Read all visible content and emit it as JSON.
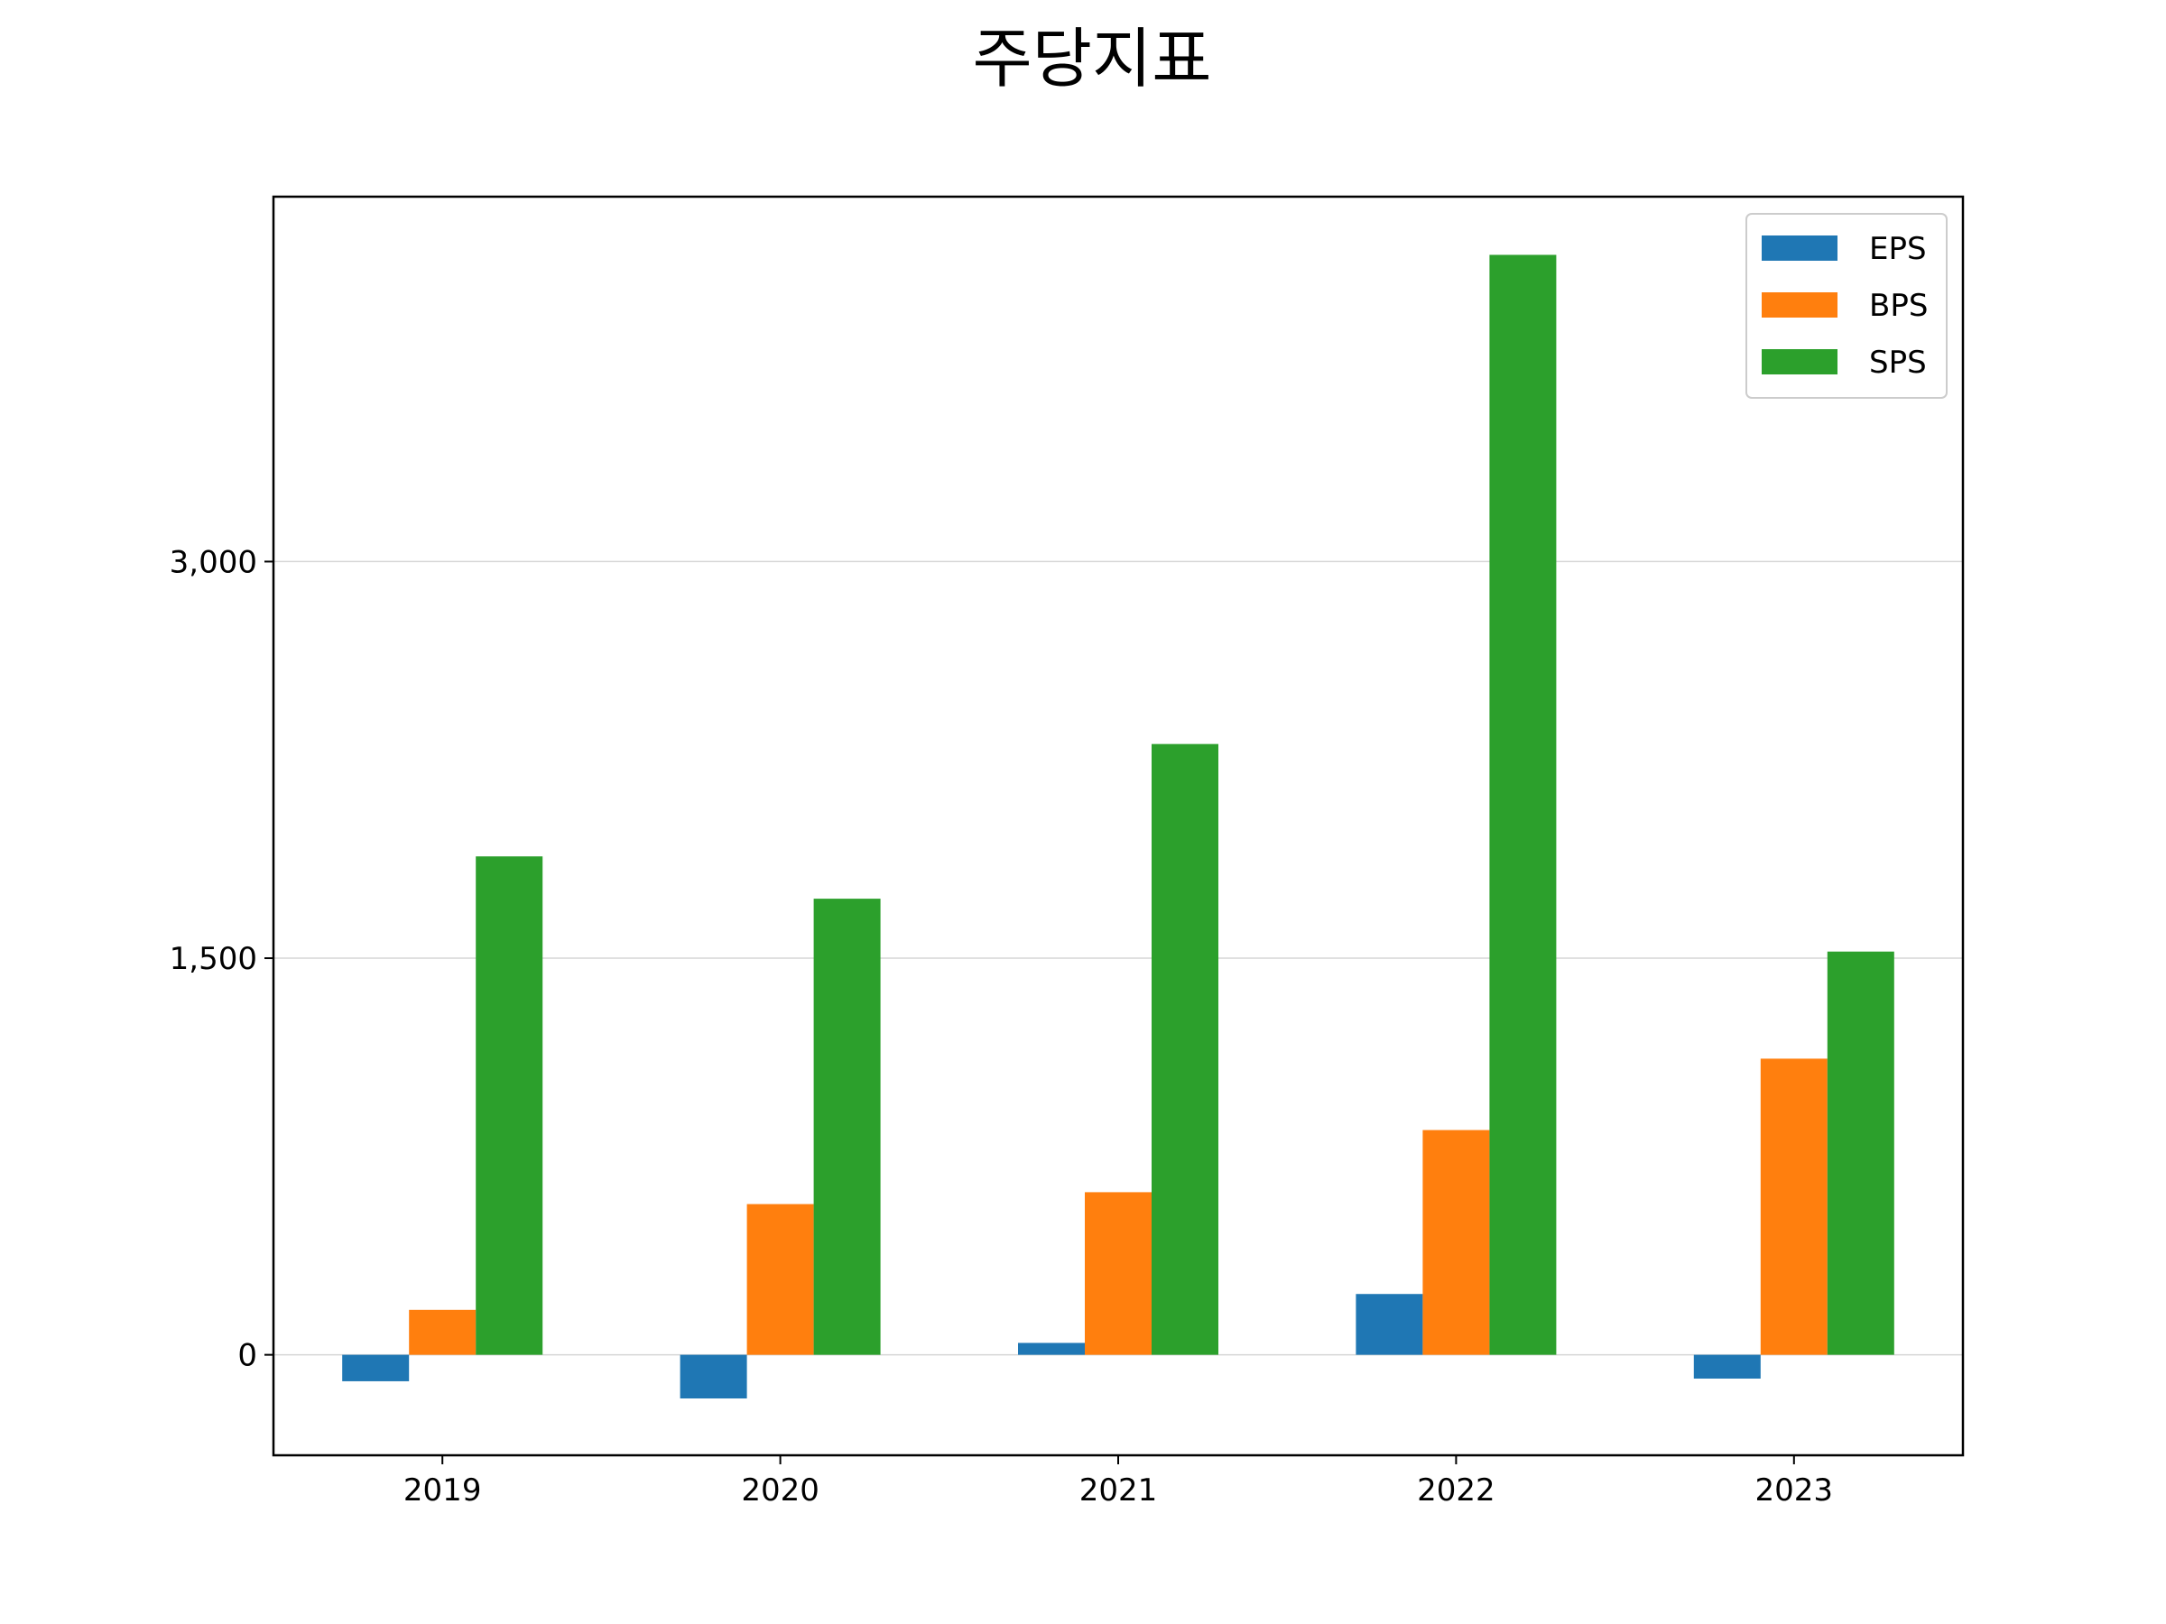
{
  "chart_data": {
    "type": "bar",
    "title": "주당지표",
    "xlabel": "",
    "ylabel": "",
    "categories": [
      "2019",
      "2020",
      "2021",
      "2022",
      "2023"
    ],
    "series": [
      {
        "name": "EPS",
        "color": "#1f77b4",
        "values": [
          -100,
          -165,
          45,
          230,
          -90
        ]
      },
      {
        "name": "BPS",
        "color": "#ff7f0e",
        "values": [
          170,
          570,
          615,
          850,
          1120
        ]
      },
      {
        "name": "SPS",
        "color": "#2ca02c",
        "values": [
          1885,
          1725,
          2310,
          4160,
          1525
        ]
      }
    ],
    "ylim": [
      -380,
      4380
    ],
    "yticks": [
      0,
      1500,
      3000
    ],
    "ytick_labels": [
      "0",
      "1,500",
      "3,000"
    ],
    "grid": "y",
    "legend": "top-right"
  }
}
